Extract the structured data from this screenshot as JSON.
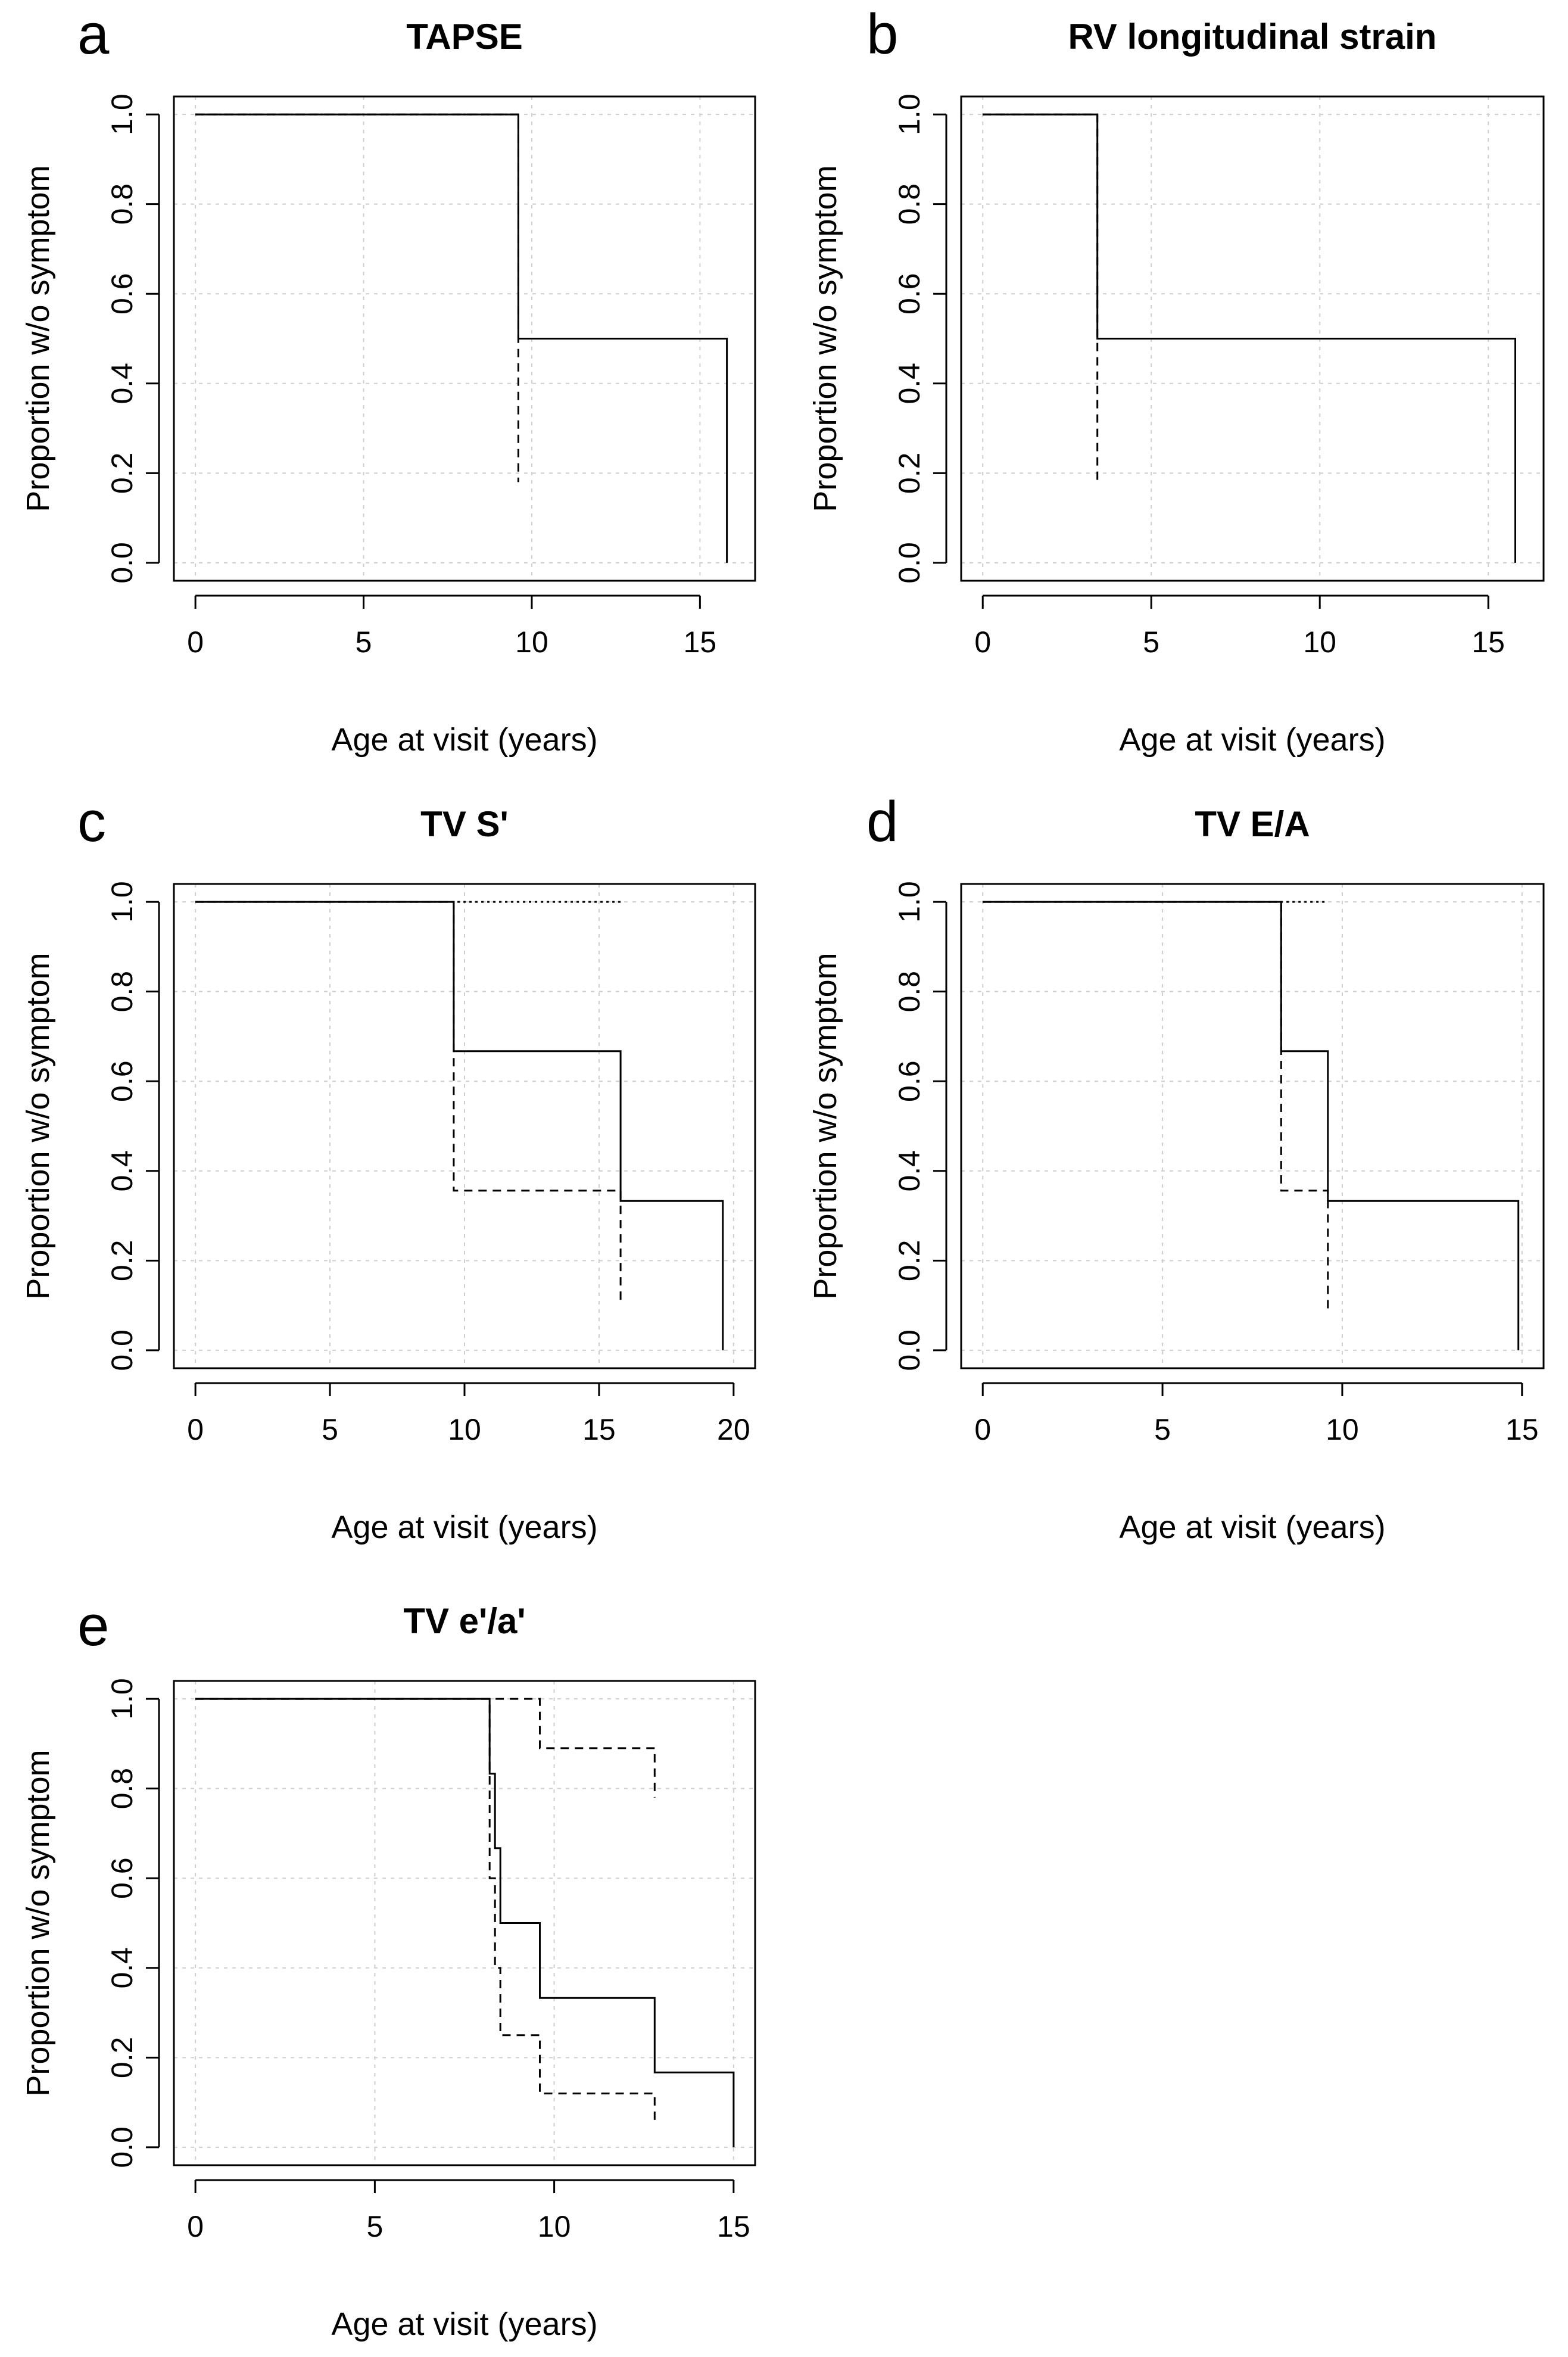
{
  "figure": {
    "description_free": true
  },
  "chart_data": [
    {
      "panel": "a",
      "type": "line",
      "title": "TAPSE",
      "xlabel": "Age at visit (years)",
      "ylabel": "Proportion w/o symptom",
      "xlim": [
        0,
        16
      ],
      "ylim": [
        0,
        1
      ],
      "xticks": [
        0,
        5,
        10,
        15
      ],
      "yticks": [
        "0.0",
        "0.2",
        "0.4",
        "0.6",
        "0.8",
        "1.0"
      ],
      "grid": true,
      "series": [
        {
          "name": "survival",
          "style": "solid",
          "points": [
            [
              0,
              1
            ],
            [
              9.6,
              1
            ],
            [
              9.6,
              0.5
            ],
            [
              15.8,
              0.5
            ],
            [
              15.8,
              0
            ]
          ]
        },
        {
          "name": "upper CI",
          "style": "dotted",
          "points": [
            [
              0,
              1
            ],
            [
              9.6,
              1
            ]
          ]
        },
        {
          "name": "lower CI",
          "style": "dashed",
          "points": [
            [
              0,
              1
            ],
            [
              9.6,
              1
            ],
            [
              9.6,
              0.18
            ]
          ]
        }
      ]
    },
    {
      "panel": "b",
      "type": "line",
      "title": "RV longitudinal strain",
      "xlabel": "Age at visit (years)",
      "ylabel": "Proportion w/o symptom",
      "xlim": [
        0,
        16
      ],
      "ylim": [
        0,
        1
      ],
      "xticks": [
        0,
        5,
        10,
        15
      ],
      "yticks": [
        "0.0",
        "0.2",
        "0.4",
        "0.6",
        "0.8",
        "1.0"
      ],
      "grid": true,
      "series": [
        {
          "name": "survival",
          "style": "solid",
          "points": [
            [
              0,
              1
            ],
            [
              3.4,
              1
            ],
            [
              3.4,
              0.5
            ],
            [
              15.8,
              0.5
            ],
            [
              15.8,
              0
            ]
          ]
        },
        {
          "name": "upper CI",
          "style": "dotted",
          "points": [
            [
              0,
              1
            ],
            [
              3.4,
              1
            ]
          ]
        },
        {
          "name": "lower CI",
          "style": "dashed",
          "points": [
            [
              0,
              1
            ],
            [
              3.4,
              1
            ],
            [
              3.4,
              0.18
            ]
          ]
        }
      ]
    },
    {
      "panel": "c",
      "type": "line",
      "title": "TV S'",
      "xlabel": "Age at visit (years)",
      "ylabel": "Proportion w/o symptom",
      "xlim": [
        0,
        20
      ],
      "ylim": [
        0,
        1
      ],
      "xticks": [
        0,
        5,
        10,
        15,
        20
      ],
      "yticks": [
        "0.0",
        "0.2",
        "0.4",
        "0.6",
        "0.8",
        "1.0"
      ],
      "grid": true,
      "series": [
        {
          "name": "survival",
          "style": "solid",
          "points": [
            [
              0,
              1
            ],
            [
              9.6,
              1
            ],
            [
              9.6,
              0.667
            ],
            [
              15.8,
              0.667
            ],
            [
              15.8,
              0.333
            ],
            [
              19.6,
              0.333
            ],
            [
              19.6,
              0
            ]
          ]
        },
        {
          "name": "upper CI",
          "style": "dotted",
          "points": [
            [
              0,
              1
            ],
            [
              15.8,
              1
            ]
          ]
        },
        {
          "name": "lower CI",
          "style": "dashed",
          "points": [
            [
              0,
              1
            ],
            [
              9.6,
              1
            ],
            [
              9.6,
              0.356
            ],
            [
              15.8,
              0.356
            ],
            [
              15.8,
              0.1
            ]
          ]
        }
      ]
    },
    {
      "panel": "d",
      "type": "line",
      "title": "TV E/A",
      "xlabel": "Age at visit (years)",
      "ylabel": "Proportion w/o symptom",
      "xlim": [
        0,
        15
      ],
      "ylim": [
        0,
        1
      ],
      "xticks": [
        0,
        5,
        10,
        15
      ],
      "yticks": [
        "0.0",
        "0.2",
        "0.4",
        "0.6",
        "0.8",
        "1.0"
      ],
      "grid": true,
      "series": [
        {
          "name": "survival",
          "style": "solid",
          "points": [
            [
              0,
              1
            ],
            [
              8.3,
              1
            ],
            [
              8.3,
              0.667
            ],
            [
              9.6,
              0.667
            ],
            [
              9.6,
              0.333
            ],
            [
              14.9,
              0.333
            ],
            [
              14.9,
              0
            ]
          ]
        },
        {
          "name": "upper CI",
          "style": "dotted",
          "points": [
            [
              0,
              1
            ],
            [
              9.6,
              1
            ]
          ]
        },
        {
          "name": "lower CI",
          "style": "dashed",
          "points": [
            [
              0,
              1
            ],
            [
              8.3,
              1
            ],
            [
              8.3,
              0.356
            ],
            [
              9.6,
              0.356
            ],
            [
              9.6,
              0.09
            ]
          ]
        }
      ]
    },
    {
      "panel": "e",
      "type": "line",
      "title": "TV e'/a'",
      "xlabel": "Age at visit (years)",
      "ylabel": "Proportion w/o symptom",
      "xlim": [
        0,
        15
      ],
      "ylim": [
        0,
        1
      ],
      "xticks": [
        0,
        5,
        10,
        15
      ],
      "yticks": [
        "0.0",
        "0.2",
        "0.4",
        "0.6",
        "0.8",
        "1.0"
      ],
      "grid": true,
      "series": [
        {
          "name": "survival",
          "style": "solid",
          "points": [
            [
              0,
              1
            ],
            [
              8.2,
              1
            ],
            [
              8.2,
              0.833
            ],
            [
              8.35,
              0.833
            ],
            [
              8.35,
              0.667
            ],
            [
              8.5,
              0.667
            ],
            [
              8.5,
              0.5
            ],
            [
              9.6,
              0.5
            ],
            [
              9.6,
              0.333
            ],
            [
              12.8,
              0.333
            ],
            [
              12.8,
              0.167
            ],
            [
              15,
              0.167
            ],
            [
              15,
              0
            ]
          ]
        },
        {
          "name": "upper CI",
          "style": "dashed",
          "points": [
            [
              0,
              1
            ],
            [
              9.6,
              1
            ],
            [
              9.6,
              0.89
            ],
            [
              12.8,
              0.89
            ],
            [
              12.8,
              0.78
            ]
          ]
        },
        {
          "name": "lower CI",
          "style": "dashed",
          "points": [
            [
              0,
              1
            ],
            [
              8.2,
              1
            ],
            [
              8.2,
              0.6
            ],
            [
              8.35,
              0.6
            ],
            [
              8.35,
              0.4
            ],
            [
              8.5,
              0.4
            ],
            [
              8.5,
              0.25
            ],
            [
              9.6,
              0.25
            ],
            [
              9.6,
              0.12
            ],
            [
              12.8,
              0.12
            ],
            [
              12.8,
              0.05
            ]
          ]
        }
      ]
    }
  ]
}
